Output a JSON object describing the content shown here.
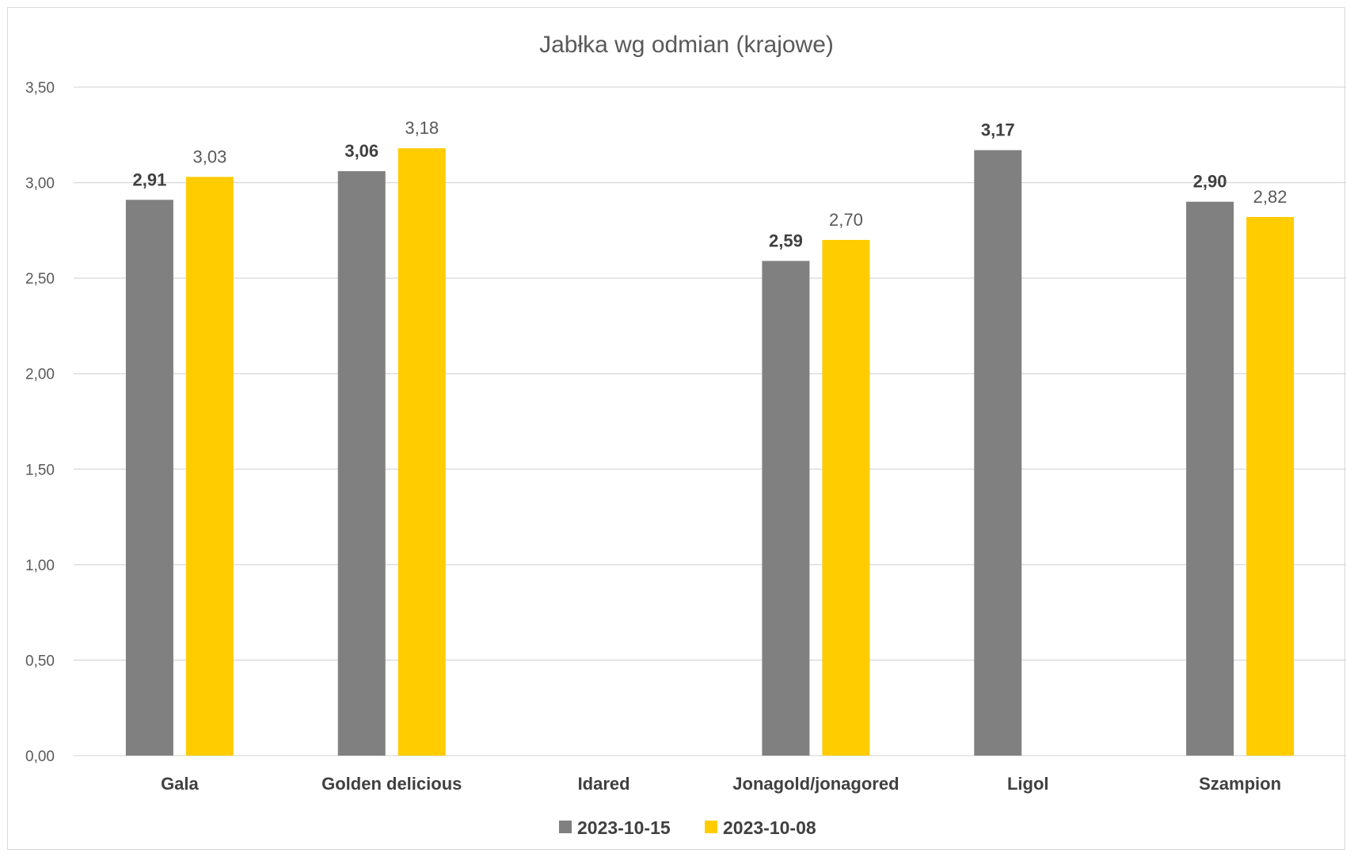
{
  "chart_data": {
    "type": "bar",
    "title": "Jabłka wg odmian (krajowe)",
    "xlabel": "",
    "ylabel": "",
    "categories": [
      "Gala",
      "Golden delicious",
      "Idared",
      "Jonagold/jonagored",
      "Ligol",
      "Szampion"
    ],
    "series": [
      {
        "name": "2023-10-15",
        "color": "#808080",
        "values": [
          2.91,
          3.06,
          null,
          2.59,
          3.17,
          2.9
        ],
        "labels": [
          "2,91",
          "3,06",
          "",
          "2,59",
          "3,17",
          "2,90"
        ]
      },
      {
        "name": "2023-10-08",
        "color": "#FFCC00",
        "values": [
          3.03,
          3.18,
          null,
          2.7,
          null,
          2.82
        ],
        "labels": [
          "3,03",
          "3,18",
          "",
          "2,70",
          "",
          "2,82"
        ]
      }
    ],
    "ylim": [
      0,
      3.5
    ],
    "yticks": [
      0,
      0.5,
      1.0,
      1.5,
      2.0,
      2.5,
      3.0,
      3.5
    ],
    "ytick_labels": [
      "0,00",
      "0,50",
      "1,00",
      "1,50",
      "2,00",
      "2,50",
      "3,00",
      "3,50"
    ],
    "grid": true,
    "legend_position": "bottom"
  }
}
